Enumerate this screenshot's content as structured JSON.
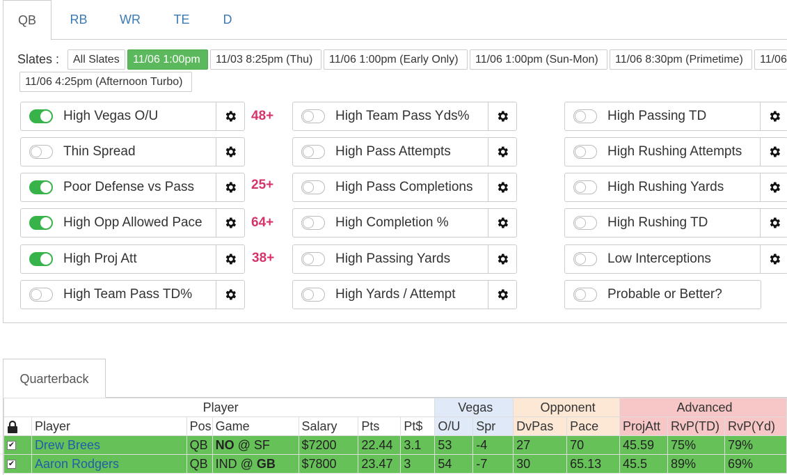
{
  "position_tabs": [
    "QB",
    "RB",
    "WR",
    "TE",
    "D"
  ],
  "slates_label": "Slates :",
  "slates": [
    "All Slates",
    "11/06 1:00pm",
    "11/03 8:25pm (Thu)",
    "11/06 1:00pm (Early Only)",
    "11/06 1:00pm (Sun-Mon)",
    "11/06 8:30pm (Primetime)",
    "11/06",
    "11/06 4:25pm (Afternoon Turbo)"
  ],
  "active_slate": "11/06 1:00pm",
  "filters": {
    "col1": [
      {
        "label": "High Vegas O/U",
        "on": true,
        "badge": "48+"
      },
      {
        "label": "Thin Spread",
        "on": false,
        "badge": ""
      },
      {
        "label": "Poor Defense vs Pass",
        "on": true,
        "badge": "25+"
      },
      {
        "label": "High Opp Allowed Pace",
        "on": true,
        "badge": "64+"
      },
      {
        "label": "High Proj Att",
        "on": true,
        "badge": "38+"
      },
      {
        "label": "High Team Pass TD%",
        "on": false,
        "badge": ""
      }
    ],
    "col2": [
      {
        "label": "High Team Pass Yds%",
        "on": false
      },
      {
        "label": "High Pass Attempts",
        "on": false
      },
      {
        "label": "High Pass Completions",
        "on": false
      },
      {
        "label": "High Completion %",
        "on": false
      },
      {
        "label": "High Passing Yards",
        "on": false
      },
      {
        "label": "High Yards / Attempt",
        "on": false
      }
    ],
    "col3": [
      {
        "label": "High Passing TD",
        "on": false
      },
      {
        "label": "High Rushing Attempts",
        "on": false
      },
      {
        "label": "High Rushing Yards",
        "on": false
      },
      {
        "label": "High Rushing TD",
        "on": false
      },
      {
        "label": "Low Interceptions",
        "on": false
      },
      {
        "label": "Probable or Better?",
        "on": false
      }
    ]
  },
  "section_tab": "Quarterback",
  "table": {
    "groups": {
      "player": "Player",
      "vegas": "Vegas",
      "opponent": "Opponent",
      "advanced": "Advanced"
    },
    "headers": [
      "Player",
      "Pos",
      "Game",
      "Salary",
      "Pts",
      "Pt$",
      "O/U",
      "Spr",
      "DvPas",
      "Pace",
      "ProjAtt",
      "RvP(TD)",
      "RvP(Yd)"
    ],
    "rows": [
      {
        "checked": true,
        "player": "Drew Brees",
        "pos": "QB",
        "game_a": "NO",
        "game_sep": " @ ",
        "game_b": "SF",
        "bold": "a",
        "salary": "$7200",
        "pts": "22.44",
        "ptd": "3.1",
        "ou": "53",
        "spr": "-4",
        "dvpas": "27",
        "pace": "70",
        "projatt": "45.59",
        "rvptd": "75%",
        "rvpyd": "79%"
      },
      {
        "checked": true,
        "player": "Aaron Rodgers",
        "pos": "QB",
        "game_a": "IND",
        "game_sep": " @ ",
        "game_b": "GB",
        "bold": "b",
        "salary": "$7800",
        "pts": "23.47",
        "ptd": "3",
        "ou": "54",
        "spr": "-7",
        "dvpas": "30",
        "pace": "65.13",
        "projatt": "45.5",
        "rvptd": "89%",
        "rvpyd": "69%"
      }
    ]
  },
  "colors": {
    "accent_green": "#5cb85c",
    "toggle_on": "#37b34a",
    "badge": "#d6336c",
    "row_green": "#66c258",
    "link_blue": "#1f5fa8"
  }
}
